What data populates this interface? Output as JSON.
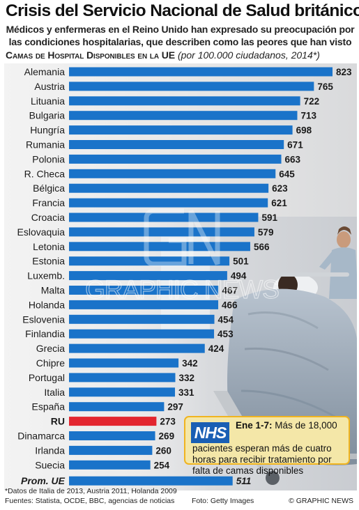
{
  "title": "Crisis del Servicio Nacional de Salud británico",
  "subtitle": "Médicos y enfermeras en el Reino Unido han expresado su preocupación por las condiciones hospitalarias, que describen como las peores que han visto",
  "chart_heading": "Camas de Hospital Disponibles en la UE",
  "chart_heading_note": "(por 100.000 ciudadanos, 2014*)",
  "chart_data": {
    "type": "bar",
    "orientation": "horizontal",
    "title": "Camas de Hospital Disponibles en la UE",
    "subtitle": "(por 100.000 ciudadanos, 2014*)",
    "xlim": [
      0,
      823
    ],
    "grid": false,
    "categories": [
      "Alemania",
      "Austria",
      "Lituania",
      "Bulgaria",
      "Hungría",
      "Rumania",
      "Polonia",
      "R. Checa",
      "Bélgica",
      "Francia",
      "Croacia",
      "Eslovaquia",
      "Letonia",
      "Estonia",
      "Luxemb.",
      "Malta",
      "Holanda",
      "Eslovenia",
      "Finlandia",
      "Grecia",
      "Chipre",
      "Portugal",
      "Italia",
      "España",
      "RU",
      "Dinamarca",
      "Irlanda",
      "Suecia",
      "Prom. UE"
    ],
    "values": [
      823,
      765,
      722,
      713,
      698,
      671,
      663,
      645,
      623,
      621,
      591,
      579,
      566,
      501,
      494,
      467,
      466,
      454,
      453,
      424,
      342,
      332,
      331,
      297,
      273,
      269,
      260,
      254,
      511
    ],
    "highlight": {
      "category": "RU",
      "color": "#e3262f"
    },
    "average": {
      "category": "Prom. UE"
    },
    "bar_color": "#1a73c9"
  },
  "nhs_box": {
    "logo": "NHS",
    "lead": "Ene 1-7:",
    "line1": "Más de 18,000",
    "text_rest": "pacientes esperan más de cuatro horas para recibir tratamiento por falta de camas disponibles"
  },
  "footnote": "*Datos de Italia de 2013, Austria 2011, Holanda 2009",
  "sources": "Fuentes: Statista, OCDE, BBC, agencias de noticias",
  "photo_credit": "Foto: Getty Images",
  "copyright": "© GRAPHIC NEWS",
  "watermark": {
    "logo": "GN",
    "text": "GRAPHIC NEWS"
  }
}
